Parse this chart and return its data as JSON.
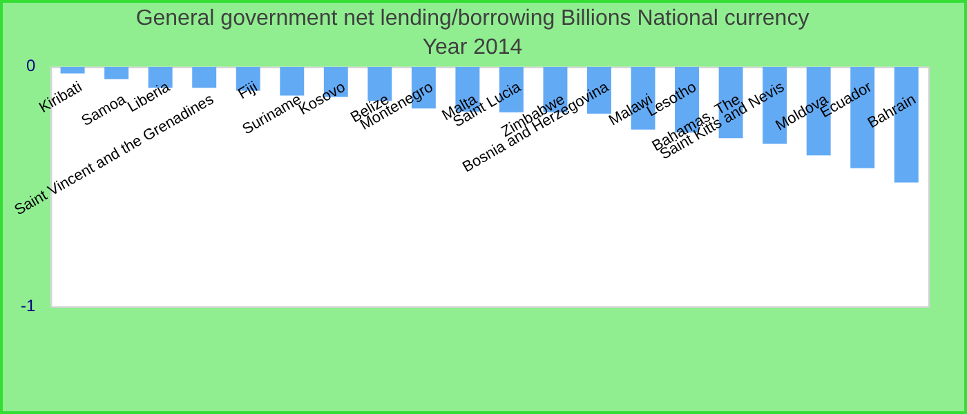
{
  "chart_data": {
    "type": "bar",
    "title": "General government net lending/borrowing Billions National currency",
    "subtitle": "Year 2014",
    "categories": [
      "Kiribati",
      "Samoa",
      "Liberia",
      "Saint Vincent and the Grenadines",
      "Fiji",
      "Suriname",
      "Kosovo",
      "Belize",
      "Montenegro",
      "Malta",
      "Saint Lucia",
      "Zimbabwe",
      "Bosnia and Herzegovina",
      "Malawi",
      "Lesotho",
      "Bahamas, The",
      "Saint Kitts and Nevis",
      "Moldova",
      "Ecuador",
      "Bahrain"
    ],
    "values": [
      -0.028,
      -0.052,
      -0.088,
      -0.088,
      -0.1,
      -0.12,
      -0.126,
      -0.142,
      -0.174,
      -0.187,
      -0.19,
      -0.19,
      -0.196,
      -0.262,
      -0.274,
      -0.298,
      -0.322,
      -0.37,
      -0.423,
      -0.483
    ],
    "color": "#63aaf5",
    "ylim": [
      -1,
      0
    ],
    "yticks": [
      -1,
      0
    ],
    "grid": false,
    "legend": false
  }
}
